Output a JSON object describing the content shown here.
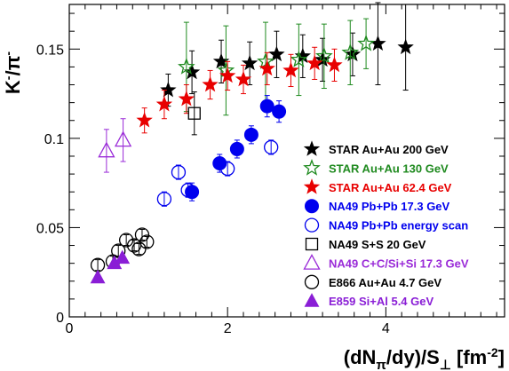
{
  "chart_data": {
    "type": "scatter",
    "xlabel": "(dN_π/dy)/S_⊥ [fm^-2]",
    "ylabel": "K^-/π^-",
    "xlim": [
      0,
      5.5
    ],
    "ylim": [
      0,
      0.175
    ],
    "x_ticks": [
      0,
      2,
      4
    ],
    "x_tick_labels": [
      "0",
      "2",
      "4"
    ],
    "y_ticks": [
      0,
      0.05,
      0.1,
      0.15
    ],
    "y_tick_labels": [
      "0",
      "0.05",
      "0.1",
      "0.15"
    ],
    "grid": false,
    "legend_position": "right",
    "series": [
      {
        "name": "STAR Au+Au 200 GeV",
        "color": "#000000",
        "marker": "star-filled",
        "points": [
          {
            "x": 1.25,
            "y": 0.127,
            "err": 0.009
          },
          {
            "x": 1.55,
            "y": 0.137,
            "err": 0.012
          },
          {
            "x": 1.92,
            "y": 0.143,
            "err": 0.012
          },
          {
            "x": 2.28,
            "y": 0.142,
            "err": 0.012
          },
          {
            "x": 2.62,
            "y": 0.147,
            "err": 0.013
          },
          {
            "x": 2.95,
            "y": 0.146,
            "err": 0.012
          },
          {
            "x": 3.2,
            "y": 0.144,
            "err": 0.012
          },
          {
            "x": 3.58,
            "y": 0.147,
            "err": 0.012
          },
          {
            "x": 3.9,
            "y": 0.153,
            "err": 0.023
          },
          {
            "x": 4.25,
            "y": 0.151,
            "err": 0.024
          }
        ]
      },
      {
        "name": "STAR Au+Au 130 GeV",
        "color": "#1f8a1f",
        "marker": "star-open",
        "points": [
          {
            "x": 1.48,
            "y": 0.14,
            "err": 0.025
          },
          {
            "x": 1.98,
            "y": 0.138,
            "err": 0.025
          },
          {
            "x": 2.48,
            "y": 0.143,
            "err": 0.022
          },
          {
            "x": 2.9,
            "y": 0.144,
            "err": 0.02
          },
          {
            "x": 3.22,
            "y": 0.146,
            "err": 0.018
          },
          {
            "x": 3.55,
            "y": 0.148,
            "err": 0.018
          },
          {
            "x": 3.75,
            "y": 0.153,
            "err": 0.014
          }
        ]
      },
      {
        "name": "STAR Au+Au 62.4 GeV",
        "color": "#e80000",
        "marker": "star-filled",
        "points": [
          {
            "x": 0.95,
            "y": 0.11,
            "err": 0.007
          },
          {
            "x": 1.2,
            "y": 0.119,
            "err": 0.008
          },
          {
            "x": 1.48,
            "y": 0.122,
            "err": 0.008
          },
          {
            "x": 1.78,
            "y": 0.13,
            "err": 0.008
          },
          {
            "x": 2.0,
            "y": 0.135,
            "err": 0.008
          },
          {
            "x": 2.2,
            "y": 0.133,
            "err": 0.008
          },
          {
            "x": 2.5,
            "y": 0.139,
            "err": 0.009
          },
          {
            "x": 2.8,
            "y": 0.138,
            "err": 0.009
          },
          {
            "x": 3.1,
            "y": 0.142,
            "err": 0.009
          },
          {
            "x": 3.35,
            "y": 0.141,
            "err": 0.009
          }
        ]
      },
      {
        "name": "NA49 Pb+Pb 17.3 GeV",
        "color": "#0000ee",
        "marker": "circle-filled",
        "points": [
          {
            "x": 1.55,
            "y": 0.07,
            "err": 0.005
          },
          {
            "x": 1.9,
            "y": 0.086,
            "err": 0.005
          },
          {
            "x": 2.12,
            "y": 0.094,
            "err": 0.005
          },
          {
            "x": 2.3,
            "y": 0.102,
            "err": 0.005
          },
          {
            "x": 2.5,
            "y": 0.118,
            "err": 0.006
          },
          {
            "x": 2.65,
            "y": 0.115,
            "err": 0.006
          }
        ]
      },
      {
        "name": "NA49 Pb+Pb energy scan",
        "color": "#0000ee",
        "marker": "circle-open",
        "points": [
          {
            "x": 1.2,
            "y": 0.066,
            "err": 0.004
          },
          {
            "x": 1.38,
            "y": 0.081,
            "err": 0.004
          },
          {
            "x": 1.5,
            "y": 0.071,
            "err": 0.004
          },
          {
            "x": 2.0,
            "y": 0.083,
            "err": 0.004
          },
          {
            "x": 2.55,
            "y": 0.095,
            "err": 0.004
          }
        ]
      },
      {
        "name": "NA49 S+S 20 GeV",
        "color": "#000000",
        "marker": "square-open",
        "points": [
          {
            "x": 1.58,
            "y": 0.114,
            "err": 0.012
          }
        ]
      },
      {
        "name": "NA49 C+C/Si+Si 17.3 GeV",
        "color": "#9a2bd8",
        "marker": "triangle-open",
        "points": [
          {
            "x": 0.47,
            "y": 0.093,
            "err": 0.012
          },
          {
            "x": 0.68,
            "y": 0.099,
            "err": 0.012
          }
        ]
      },
      {
        "name": "E866 Au+Au 4.7 GeV",
        "color": "#000000",
        "marker": "circle-open",
        "points": [
          {
            "x": 0.36,
            "y": 0.029,
            "err": 0.003
          },
          {
            "x": 0.55,
            "y": 0.031,
            "err": 0.003
          },
          {
            "x": 0.62,
            "y": 0.037,
            "err": 0.003
          },
          {
            "x": 0.72,
            "y": 0.043,
            "err": 0.003
          },
          {
            "x": 0.82,
            "y": 0.04,
            "err": 0.003
          },
          {
            "x": 0.88,
            "y": 0.038,
            "err": 0.003
          },
          {
            "x": 0.92,
            "y": 0.046,
            "err": 0.003
          },
          {
            "x": 0.98,
            "y": 0.042,
            "err": 0.003
          }
        ]
      },
      {
        "name": "E859 Si+Al 5.4 GeV",
        "color": "#8a1ed6",
        "marker": "triangle-filled",
        "points": [
          {
            "x": 0.36,
            "y": 0.022,
            "err": 0.0
          },
          {
            "x": 0.57,
            "y": 0.03,
            "err": 0.0
          },
          {
            "x": 0.67,
            "y": 0.033,
            "err": 0.0
          }
        ]
      }
    ]
  }
}
